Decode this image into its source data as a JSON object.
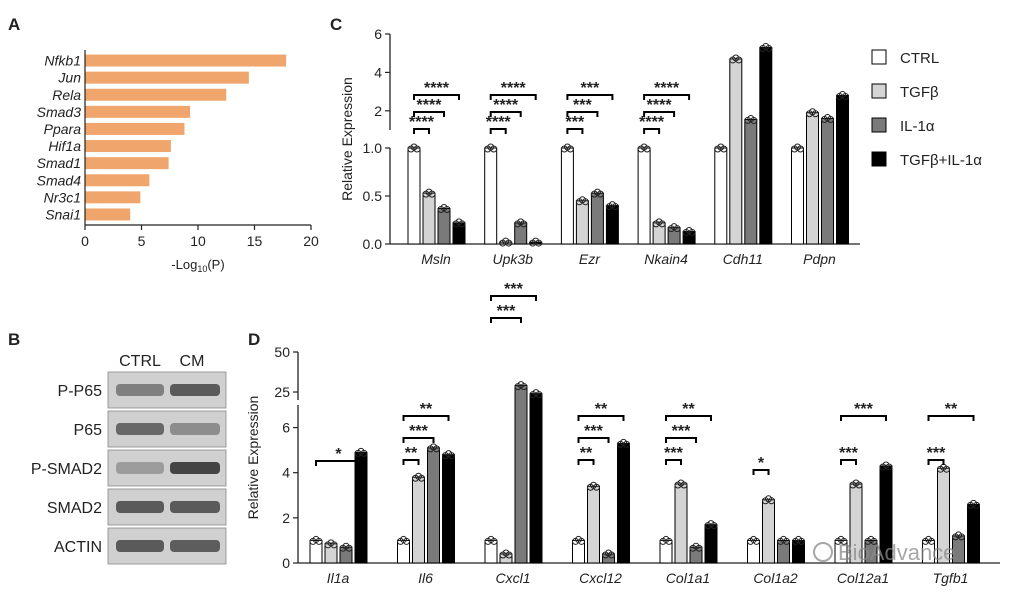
{
  "colors": {
    "orange": "#f0a56c",
    "ctrl": "#ffffff",
    "tgfb": "#d4d4d4",
    "il1a": "#7a7a7a",
    "both": "#000000",
    "blot_bg": "#d0d0d0",
    "band": "#3c3c3c"
  },
  "chart_data": [
    {
      "panel": "A",
      "type": "bar",
      "orientation": "horizontal",
      "categories": [
        "Nfkb1",
        "Jun",
        "Rela",
        "Smad3",
        "Ppara",
        "Hif1a",
        "Smad1",
        "Smad4",
        "Nr3c1",
        "Snai1"
      ],
      "values": [
        17.8,
        14.5,
        12.5,
        9.3,
        8.8,
        7.6,
        7.4,
        5.7,
        4.9,
        4.0
      ],
      "xlabel": "-Log10(P)",
      "xlabel_prefix": "-Log",
      "xlabel_sub": "10",
      "xlabel_suffix": "(P)",
      "xlim": [
        0,
        20
      ],
      "xticks": [
        "0",
        "5",
        "10",
        "15",
        "20"
      ]
    },
    {
      "panel": "C",
      "type": "bar",
      "ylabel": "Relative Expression",
      "broken_axis": {
        "lower": [
          0,
          1.0
        ],
        "upper": [
          1.0,
          6
        ]
      },
      "yticks_lower": [
        "0.0",
        "0.5",
        "1.0"
      ],
      "yticks_upper": [
        "2",
        "4",
        "6"
      ],
      "categories": [
        "Msln",
        "Upk3b",
        "Ezr",
        "Nkain4",
        "Cdh11",
        "Pdpn"
      ],
      "legend": {
        "position": "right",
        "entries": [
          "CTRL",
          "TGFβ",
          "IL-1α",
          "TGFβ+IL-1α"
        ]
      },
      "series": [
        {
          "name": "CTRL",
          "values": [
            1.0,
            1.0,
            1.0,
            1.0,
            1.0,
            1.0
          ]
        },
        {
          "name": "TGFβ",
          "values": [
            0.53,
            0.02,
            0.45,
            0.22,
            4.7,
            1.9
          ]
        },
        {
          "name": "IL-1α",
          "values": [
            0.37,
            0.22,
            0.53,
            0.17,
            1.55,
            1.6
          ]
        },
        {
          "name": "TGFβ+IL-1α",
          "values": [
            0.22,
            0.02,
            0.4,
            0.13,
            5.3,
            2.8
          ]
        }
      ],
      "significance": [
        {
          "group": 0,
          "from": 0,
          "to": 1,
          "label": "****"
        },
        {
          "group": 0,
          "from": 0,
          "to": 2,
          "label": "****"
        },
        {
          "group": 0,
          "from": 0,
          "to": 3,
          "label": "****"
        },
        {
          "group": 1,
          "from": 0,
          "to": 1,
          "label": "****"
        },
        {
          "group": 1,
          "from": 0,
          "to": 2,
          "label": "****"
        },
        {
          "group": 1,
          "from": 0,
          "to": 3,
          "label": "****"
        },
        {
          "group": 2,
          "from": 0,
          "to": 1,
          "label": "***"
        },
        {
          "group": 2,
          "from": 0,
          "to": 2,
          "label": "***"
        },
        {
          "group": 2,
          "from": 0,
          "to": 3,
          "label": "***"
        },
        {
          "group": 3,
          "from": 0,
          "to": 1,
          "label": "****"
        },
        {
          "group": 3,
          "from": 0,
          "to": 2,
          "label": "****"
        },
        {
          "group": 3,
          "from": 0,
          "to": 3,
          "label": "****"
        }
      ]
    },
    {
      "panel": "D",
      "type": "bar",
      "ylabel": "Relative Expression",
      "broken_axis": {
        "lower": [
          0,
          7
        ],
        "upper": [
          20,
          50
        ]
      },
      "yticks_lower": [
        "0",
        "2",
        "4",
        "6"
      ],
      "yticks_upper": [
        "25",
        "50"
      ],
      "categories": [
        "Il1a",
        "Il6",
        "Cxcl1",
        "Cxcl12",
        "Col1a1",
        "Col1a2",
        "Col12a1",
        "Tgfb1"
      ],
      "series": [
        {
          "name": "CTRL",
          "values": [
            1.0,
            1.0,
            1.0,
            1.0,
            1.0,
            1.0,
            1.0,
            1.0
          ]
        },
        {
          "name": "TGFβ",
          "values": [
            0.85,
            3.8,
            0.4,
            3.4,
            3.5,
            2.8,
            3.5,
            4.2
          ]
        },
        {
          "name": "IL-1α",
          "values": [
            0.7,
            5.1,
            29,
            0.4,
            0.7,
            1.0,
            1.0,
            1.2
          ]
        },
        {
          "name": "TGFβ+IL-1α",
          "values": [
            4.9,
            4.8,
            24,
            5.3,
            1.7,
            1.0,
            4.3,
            2.6
          ]
        }
      ],
      "significance": [
        {
          "group": 0,
          "from": 0,
          "to": 3,
          "label": "*"
        },
        {
          "group": 1,
          "from": 0,
          "to": 1,
          "label": "**"
        },
        {
          "group": 1,
          "from": 0,
          "to": 2,
          "label": "***"
        },
        {
          "group": 1,
          "from": 0,
          "to": 3,
          "label": "**"
        },
        {
          "group": 2,
          "from": 0,
          "to": 2,
          "label": "***"
        },
        {
          "group": 2,
          "from": 0,
          "to": 3,
          "label": "***"
        },
        {
          "group": 3,
          "from": 0,
          "to": 1,
          "label": "**"
        },
        {
          "group": 3,
          "from": 0,
          "to": 2,
          "label": "***"
        },
        {
          "group": 3,
          "from": 0,
          "to": 3,
          "label": "**"
        },
        {
          "group": 4,
          "from": 0,
          "to": 1,
          "label": "***"
        },
        {
          "group": 4,
          "from": 0,
          "to": 2,
          "label": "***"
        },
        {
          "group": 4,
          "from": 0,
          "to": 3,
          "label": "**"
        },
        {
          "group": 5,
          "from": 0,
          "to": 1,
          "label": "*"
        },
        {
          "group": 6,
          "from": 0,
          "to": 1,
          "label": "***"
        },
        {
          "group": 6,
          "from": 0,
          "to": 3,
          "label": "***"
        },
        {
          "group": 7,
          "from": 0,
          "to": 1,
          "label": "***"
        },
        {
          "group": 7,
          "from": 0,
          "to": 3,
          "label": "**"
        }
      ]
    }
  ],
  "panel_b": {
    "label": "B",
    "columns": [
      "CTRL",
      "CM"
    ],
    "rows": [
      {
        "name": "P-P65",
        "ctrl": 0.55,
        "cm": 0.8
      },
      {
        "name": "P65",
        "ctrl": 0.7,
        "cm": 0.45
      },
      {
        "name": "P-SMAD2",
        "ctrl": 0.35,
        "cm": 0.95
      },
      {
        "name": "SMAD2",
        "ctrl": 0.8,
        "cm": 0.8
      },
      {
        "name": "ACTIN",
        "ctrl": 0.8,
        "cm": 0.78
      }
    ]
  },
  "watermark": "BioAdvance"
}
